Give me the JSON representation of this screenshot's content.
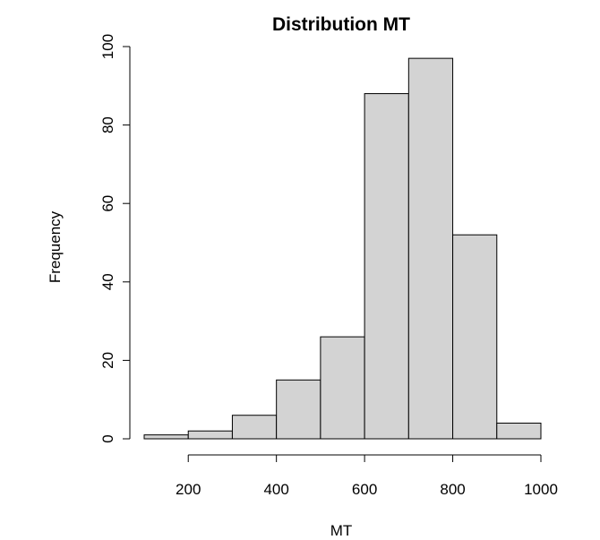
{
  "chart_data": {
    "type": "bar",
    "subtype": "histogram",
    "title": "Distribution MT",
    "xlabel": "MT",
    "ylabel": "Frequency",
    "bins": [
      {
        "start": 100,
        "end": 200,
        "count": 1
      },
      {
        "start": 200,
        "end": 300,
        "count": 2
      },
      {
        "start": 300,
        "end": 400,
        "count": 6
      },
      {
        "start": 400,
        "end": 500,
        "count": 15
      },
      {
        "start": 500,
        "end": 600,
        "count": 26
      },
      {
        "start": 600,
        "end": 700,
        "count": 88
      },
      {
        "start": 700,
        "end": 800,
        "count": 97
      },
      {
        "start": 800,
        "end": 900,
        "count": 52
      },
      {
        "start": 900,
        "end": 1000,
        "count": 4
      }
    ],
    "xticks": [
      200,
      400,
      600,
      800,
      1000
    ],
    "yticks": [
      0,
      20,
      40,
      60,
      80,
      100
    ],
    "xlim": [
      100,
      1000
    ],
    "ylim": [
      0,
      100
    ],
    "grid": false,
    "colors": {
      "bar_fill": "#d3d3d3",
      "bar_stroke": "#000000"
    }
  }
}
